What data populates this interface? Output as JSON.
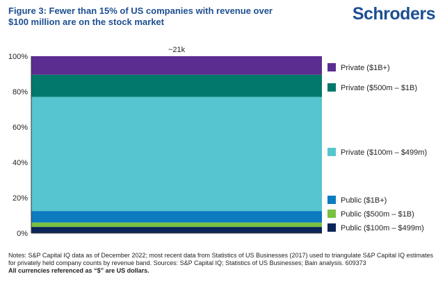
{
  "header": {
    "title": "Figure 3: Fewer than 15% of US companies with revenue over $100 million are on the stock market",
    "logo": "Schroders"
  },
  "chart_data": {
    "type": "bar",
    "stacked": true,
    "categories": [
      "~21k"
    ],
    "ylim": [
      0,
      100
    ],
    "yticks": [
      "0%",
      "20%",
      "40%",
      "60%",
      "80%",
      "100%"
    ],
    "ytick_values": [
      0,
      20,
      40,
      60,
      80,
      100
    ],
    "series": [
      {
        "name": "Public ($100m – $499m)",
        "values": [
          3.5
        ],
        "color": "#0b2559"
      },
      {
        "name": "Public ($500m – $1B)",
        "values": [
          2.5
        ],
        "color": "#78c142"
      },
      {
        "name": "Public ($1B+)",
        "values": [
          6.5
        ],
        "color": "#0c7bc0"
      },
      {
        "name": "Private ($100m – $499m)",
        "values": [
          64.5
        ],
        "color": "#56c5cf"
      },
      {
        "name": "Private ($500m – $1B)",
        "values": [
          12.5
        ],
        "color": "#00786a"
      },
      {
        "name": "Private ($1B+)",
        "values": [
          10.5
        ],
        "color": "#5b2d91"
      }
    ],
    "legend": "right"
  },
  "notes": {
    "line1": "Notes: S&P Capital IQ data as of December 2022; most recent data from Statistics of US Businesses (2017) used to triangulate S&P Capital IQ estimates for privately held company counts by revenue band. Sources: S&P Capital IQ; Statistics of US Businesses; Bain analysis. 609373",
    "line2": "All currencies referenced as “$” are US dollars."
  }
}
